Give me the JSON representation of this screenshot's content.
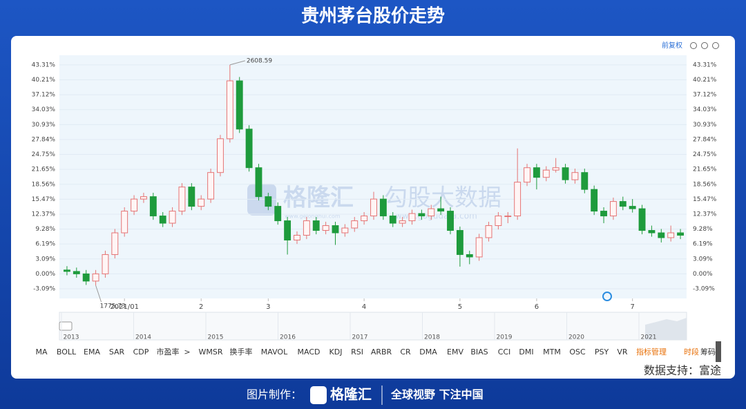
{
  "header": {
    "title": "贵州茅台股价走势"
  },
  "toolbar": {
    "adjust": "前复权"
  },
  "chart_data": {
    "type": "candlestick",
    "ylim": [
      -5.1,
      45.3
    ],
    "yticks": [
      {
        "value": 43.31,
        "label": "43.31%"
      },
      {
        "value": 40.21,
        "label": "40.21%"
      },
      {
        "value": 37.12,
        "label": "37.12%"
      },
      {
        "value": 34.03,
        "label": "34.03%"
      },
      {
        "value": 30.93,
        "label": "30.93%"
      },
      {
        "value": 27.84,
        "label": "27.84%"
      },
      {
        "value": 24.75,
        "label": "24.75%"
      },
      {
        "value": 21.65,
        "label": "21.65%"
      },
      {
        "value": 18.56,
        "label": "18.56%"
      },
      {
        "value": 15.47,
        "label": "15.47%"
      },
      {
        "value": 12.37,
        "label": "12.37%"
      },
      {
        "value": 9.28,
        "label": "9.28%"
      },
      {
        "value": 6.19,
        "label": "6.19%"
      },
      {
        "value": 3.09,
        "label": "3.09%"
      },
      {
        "value": 0,
        "label": "0.00%"
      },
      {
        "value": -3.09,
        "label": "-3.09%"
      }
    ],
    "xticks": [
      {
        "value": 6,
        "label": "2021/01"
      },
      {
        "value": 14,
        "label": "2"
      },
      {
        "value": 21,
        "label": "3"
      },
      {
        "value": 31,
        "label": "4"
      },
      {
        "value": 41,
        "label": "5"
      },
      {
        "value": 49,
        "label": "6"
      },
      {
        "value": 59,
        "label": "7"
      }
    ],
    "grid": true,
    "up_color": "#e57373",
    "down_color": "#1e9b3c",
    "high_label": "2608.59",
    "low_label": "1775.73",
    "candles": [
      {
        "open": 0.8,
        "high": 1.6,
        "low": -0.3,
        "close": 0.5
      },
      {
        "open": 0.5,
        "high": 1.3,
        "low": -0.8,
        "close": 0
      },
      {
        "open": 0,
        "high": 0.8,
        "low": -2.3,
        "close": -1.5
      },
      {
        "open": -1.5,
        "high": 0.8,
        "low": -2.4,
        "close": 0
      },
      {
        "open": 0,
        "high": 4.8,
        "low": -0.8,
        "close": 4
      },
      {
        "open": 4,
        "high": 9.3,
        "low": 3.2,
        "close": 8.5
      },
      {
        "open": 8.5,
        "high": 13.8,
        "low": 7.7,
        "close": 13
      },
      {
        "open": 13,
        "high": 16.3,
        "low": 12.2,
        "close": 15.5
      },
      {
        "open": 15.5,
        "high": 16.8,
        "low": 14.7,
        "close": 16
      },
      {
        "open": 16,
        "high": 16.8,
        "low": 11.2,
        "close": 12
      },
      {
        "open": 12,
        "high": 12.8,
        "low": 9.7,
        "close": 10.5
      },
      {
        "open": 10.5,
        "high": 13.8,
        "low": 9.7,
        "close": 13
      },
      {
        "open": 13,
        "high": 18.8,
        "low": 12.2,
        "close": 18
      },
      {
        "open": 18,
        "high": 18.8,
        "low": 13.2,
        "close": 14
      },
      {
        "open": 14,
        "high": 16.3,
        "low": 13.2,
        "close": 15.5
      },
      {
        "open": 15.5,
        "high": 21.8,
        "low": 14.7,
        "close": 21
      },
      {
        "open": 21,
        "high": 28.8,
        "low": 20.2,
        "close": 28
      },
      {
        "open": 28,
        "high": 43.31,
        "low": 27.2,
        "close": 40
      },
      {
        "open": 40,
        "high": 40.8,
        "low": 29.2,
        "close": 30
      },
      {
        "open": 30,
        "high": 30.8,
        "low": 21.2,
        "close": 22
      },
      {
        "open": 22,
        "high": 22.8,
        "low": 15.2,
        "close": 16
      },
      {
        "open": 16,
        "high": 16.8,
        "low": 13.2,
        "close": 14
      },
      {
        "open": 14,
        "high": 14.8,
        "low": 10.2,
        "close": 11
      },
      {
        "open": 11,
        "high": 11.8,
        "low": 4,
        "close": 7
      },
      {
        "open": 7,
        "high": 8.8,
        "low": 6.2,
        "close": 8
      },
      {
        "open": 8,
        "high": 11.8,
        "low": 7.2,
        "close": 11
      },
      {
        "open": 11,
        "high": 11.8,
        "low": 8.2,
        "close": 9
      },
      {
        "open": 9,
        "high": 10.8,
        "low": 8.2,
        "close": 10
      },
      {
        "open": 10,
        "high": 10.8,
        "low": 6,
        "close": 8.5
      },
      {
        "open": 8.5,
        "high": 10.3,
        "low": 7.7,
        "close": 9.5
      },
      {
        "open": 9.5,
        "high": 11.8,
        "low": 8.7,
        "close": 11
      },
      {
        "open": 11,
        "high": 12.8,
        "low": 10.2,
        "close": 12
      },
      {
        "open": 12,
        "high": 17,
        "low": 11.2,
        "close": 15.5
      },
      {
        "open": 15.5,
        "high": 16.3,
        "low": 11.2,
        "close": 12
      },
      {
        "open": 12,
        "high": 12.8,
        "low": 9.7,
        "close": 10.5
      },
      {
        "open": 10.5,
        "high": 11.8,
        "low": 9.7,
        "close": 11
      },
      {
        "open": 11,
        "high": 13.3,
        "low": 10.2,
        "close": 12.5
      },
      {
        "open": 12.5,
        "high": 13.3,
        "low": 11.2,
        "close": 12
      },
      {
        "open": 12,
        "high": 14.3,
        "low": 11.2,
        "close": 13.5
      },
      {
        "open": 13.5,
        "high": 16,
        "low": 12.2,
        "close": 13
      },
      {
        "open": 13,
        "high": 13.8,
        "low": 8.2,
        "close": 9
      },
      {
        "open": 9,
        "high": 9.8,
        "low": 1.5,
        "close": 4
      },
      {
        "open": 4,
        "high": 4.8,
        "low": 2,
        "close": 3.5
      },
      {
        "open": 3.5,
        "high": 8.3,
        "low": 2.7,
        "close": 7.5
      },
      {
        "open": 7.5,
        "high": 10.8,
        "low": 6.7,
        "close": 10
      },
      {
        "open": 10,
        "high": 12.8,
        "low": 9.2,
        "close": 12
      },
      {
        "open": 12,
        "high": 12.8,
        "low": 10.5,
        "close": 12
      },
      {
        "open": 12,
        "high": 26,
        "low": 11.2,
        "close": 19
      },
      {
        "open": 19,
        "high": 22.8,
        "low": 18.2,
        "close": 22
      },
      {
        "open": 22,
        "high": 22.8,
        "low": 17.5,
        "close": 20
      },
      {
        "open": 20,
        "high": 22.3,
        "low": 19.2,
        "close": 21.5
      },
      {
        "open": 21.5,
        "high": 24,
        "low": 21,
        "close": 22
      },
      {
        "open": 22,
        "high": 22.8,
        "low": 18.7,
        "close": 19.5
      },
      {
        "open": 19.5,
        "high": 21.8,
        "low": 18.7,
        "close": 21
      },
      {
        "open": 21,
        "high": 21.8,
        "low": 16.7,
        "close": 17.5
      },
      {
        "open": 17.5,
        "high": 18.3,
        "low": 12.2,
        "close": 13
      },
      {
        "open": 13,
        "high": 13.8,
        "low": 10.5,
        "close": 12
      },
      {
        "open": 12,
        "high": 15.8,
        "low": 11.2,
        "close": 15
      },
      {
        "open": 15,
        "high": 16,
        "low": 13.2,
        "close": 14
      },
      {
        "open": 14,
        "high": 15.5,
        "low": 12.7,
        "close": 13.5
      },
      {
        "open": 13.5,
        "high": 14.3,
        "low": 8.2,
        "close": 9
      },
      {
        "open": 9,
        "high": 10,
        "low": 7.7,
        "close": 8.5
      },
      {
        "open": 8.5,
        "high": 9.3,
        "low": 6.5,
        "close": 7.5
      },
      {
        "open": 7.5,
        "high": 10,
        "low": 6.7,
        "close": 8.5
      },
      {
        "open": 8.5,
        "high": 9.3,
        "low": 7.2,
        "close": 8
      }
    ]
  },
  "navigator": {
    "years": [
      "2013",
      "2014",
      "2015",
      "2016",
      "2017",
      "2018",
      "2019",
      "2020",
      "2021"
    ]
  },
  "tabs": [
    "MA",
    "BOLL",
    "EMA",
    "SAR",
    "CDP",
    "市盈率",
    ">",
    "WMSR",
    "换手率",
    "MAVOL",
    "MACD",
    "KDJ",
    "RSI",
    "ARBR",
    "CR",
    "DMA",
    "EMV",
    "BIAS",
    "CCI",
    "DMI",
    "MTM",
    "OSC",
    "PSY",
    "VR",
    "指标管理",
    "时段",
    "筹码"
  ],
  "watermark": {
    "brand": "格隆汇",
    "brand_url": "www.gelonghui.com",
    "product": "勾股大数据",
    "product_url": "www.gogudata.com"
  },
  "source": "数据支持：富途",
  "footer": {
    "made_by": "图片制作：",
    "logo": "格隆汇",
    "slogan": "全球视野 下注中国"
  }
}
